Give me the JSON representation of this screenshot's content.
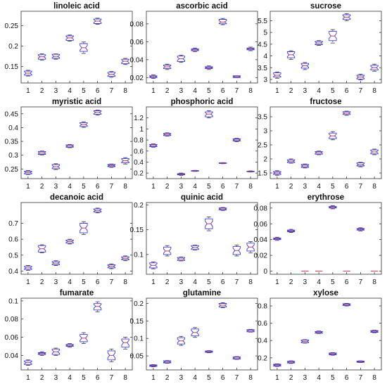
{
  "chart_data": [
    {
      "type": "box",
      "title": "linoleic acid",
      "categories": [
        "1",
        "2",
        "3",
        "4",
        "5",
        "6",
        "7",
        "8"
      ],
      "ylim": [
        0.11,
        0.285
      ],
      "yticks": [
        0.15,
        0.2,
        0.25
      ],
      "ytick_labels": [
        "0.15",
        "0.2",
        "0.25"
      ],
      "boxes": [
        [
          0.127,
          0.129,
          0.134,
          0.139,
          0.141
        ],
        [
          0.166,
          0.168,
          0.174,
          0.179,
          0.181
        ],
        [
          0.168,
          0.17,
          0.175,
          0.18,
          0.181
        ],
        [
          0.212,
          0.214,
          0.22,
          0.225,
          0.227
        ],
        [
          0.182,
          0.187,
          0.196,
          0.206,
          0.21
        ],
        [
          0.253,
          0.255,
          0.261,
          0.266,
          0.268
        ],
        [
          0.124,
          0.126,
          0.131,
          0.136,
          0.138
        ],
        [
          0.155,
          0.157,
          0.163,
          0.168,
          0.17
        ]
      ]
    },
    {
      "type": "box",
      "title": "ascorbic acid",
      "categories": [
        "1",
        "2",
        "3",
        "4",
        "5",
        "6",
        "7",
        "8"
      ],
      "ylim": [
        0.014,
        0.094
      ],
      "yticks": [
        0.02,
        0.04,
        0.06,
        0.08
      ],
      "ytick_labels": [
        "0.02",
        "0.04",
        "0.06",
        "0.08"
      ],
      "boxes": [
        [
          0.019,
          0.02,
          0.021,
          0.022,
          0.023
        ],
        [
          0.029,
          0.03,
          0.032,
          0.034,
          0.035
        ],
        [
          0.037,
          0.038,
          0.041,
          0.044,
          0.045
        ],
        [
          0.049,
          0.05,
          0.051,
          0.052,
          0.053
        ],
        [
          0.029,
          0.03,
          0.031,
          0.032,
          0.033
        ],
        [
          0.079,
          0.08,
          0.082,
          0.085,
          0.086
        ],
        [
          0.02,
          0.02,
          0.021,
          0.022,
          0.022
        ],
        [
          0.05,
          0.051,
          0.052,
          0.053,
          0.054
        ]
      ]
    },
    {
      "type": "box",
      "title": "sucrose",
      "categories": [
        "1",
        "2",
        "3",
        "4",
        "5",
        "6",
        "7",
        "8"
      ],
      "ylim": [
        2.85,
        5.9
      ],
      "yticks": [
        3,
        3.5,
        4,
        4.5,
        5,
        5.5
      ],
      "ytick_labels": [
        "3",
        "3.5",
        "4",
        "4.5",
        "5",
        "5.5"
      ],
      "boxes": [
        [
          3.05,
          3.1,
          3.18,
          3.28,
          3.32
        ],
        [
          3.85,
          3.92,
          4.05,
          4.18,
          4.22
        ],
        [
          3.42,
          3.48,
          3.58,
          3.68,
          3.72
        ],
        [
          4.45,
          4.48,
          4.55,
          4.62,
          4.65
        ],
        [
          4.55,
          4.65,
          4.85,
          5.05,
          5.12
        ],
        [
          5.5,
          5.55,
          5.65,
          5.75,
          5.8
        ],
        [
          2.98,
          3.02,
          3.1,
          3.18,
          3.22
        ],
        [
          3.35,
          3.4,
          3.5,
          3.6,
          3.65
        ]
      ]
    },
    {
      "type": "box",
      "title": "myristic acid",
      "categories": [
        "1",
        "2",
        "3",
        "4",
        "5",
        "6",
        "7",
        "8"
      ],
      "ylim": [
        0.215,
        0.475
      ],
      "yticks": [
        0.25,
        0.3,
        0.35,
        0.4,
        0.45
      ],
      "ytick_labels": [
        "0.25",
        "0.3",
        "0.35",
        "0.4",
        "0.45"
      ],
      "boxes": [
        [
          0.23,
          0.232,
          0.237,
          0.242,
          0.244
        ],
        [
          0.301,
          0.303,
          0.308,
          0.313,
          0.315
        ],
        [
          0.248,
          0.251,
          0.258,
          0.266,
          0.269
        ],
        [
          0.327,
          0.329,
          0.333,
          0.337,
          0.339
        ],
        [
          0.401,
          0.404,
          0.411,
          0.418,
          0.421
        ],
        [
          0.445,
          0.448,
          0.455,
          0.461,
          0.463
        ],
        [
          0.256,
          0.258,
          0.262,
          0.266,
          0.268
        ],
        [
          0.268,
          0.272,
          0.28,
          0.288,
          0.291
        ]
      ]
    },
    {
      "type": "box",
      "title": "phosphoric acid",
      "categories": [
        "1",
        "2",
        "3",
        "4",
        "5",
        "6",
        "7",
        "8"
      ],
      "ylim": [
        0.1,
        1.4
      ],
      "yticks": [
        0.2,
        0.4,
        0.6,
        0.8,
        1,
        1.2
      ],
      "ytick_labels": [
        "0.2",
        "0.4",
        "0.6",
        "0.8",
        "1",
        "1.2"
      ],
      "boxes": [
        [
          0.67,
          0.68,
          0.7,
          0.72,
          0.73
        ],
        [
          0.87,
          0.88,
          0.9,
          0.92,
          0.93
        ],
        [
          0.16,
          0.17,
          0.18,
          0.19,
          0.2
        ],
        [
          0.23,
          0.235,
          0.24,
          0.245,
          0.25
        ],
        [
          1.2,
          1.22,
          1.27,
          1.31,
          1.33
        ],
        [
          0.37,
          0.375,
          0.38,
          0.385,
          0.39
        ],
        [
          0.77,
          0.78,
          0.8,
          0.82,
          0.83
        ],
        [
          0.22,
          0.225,
          0.23,
          0.235,
          0.24
        ]
      ]
    },
    {
      "type": "box",
      "title": "fructose",
      "categories": [
        "1",
        "2",
        "3",
        "4",
        "5",
        "6",
        "7",
        "8"
      ],
      "ylim": [
        1.3,
        3.85
      ],
      "yticks": [
        1.5,
        2,
        2.5,
        3,
        3.5
      ],
      "ytick_labels": [
        "1.5",
        "2",
        "2.5",
        "3",
        "3.5"
      ],
      "boxes": [
        [
          1.42,
          1.45,
          1.5,
          1.55,
          1.58
        ],
        [
          1.85,
          1.87,
          1.92,
          1.97,
          2.0
        ],
        [
          1.68,
          1.7,
          1.75,
          1.8,
          1.82
        ],
        [
          2.15,
          2.17,
          2.22,
          2.26,
          2.28
        ],
        [
          2.68,
          2.72,
          2.82,
          2.92,
          2.97
        ],
        [
          3.55,
          3.58,
          3.63,
          3.68,
          3.7
        ],
        [
          1.72,
          1.75,
          1.8,
          1.86,
          1.88
        ],
        [
          2.15,
          2.18,
          2.25,
          2.32,
          2.35
        ]
      ]
    },
    {
      "type": "box",
      "title": "decanoic acid",
      "categories": [
        "1",
        "2",
        "3",
        "4",
        "5",
        "6",
        "7",
        "8"
      ],
      "ylim": [
        0.38,
        0.83
      ],
      "yticks": [
        0.4,
        0.5,
        0.6,
        0.7
      ],
      "ytick_labels": [
        "0.4",
        "0.5",
        "0.6",
        "0.7"
      ],
      "boxes": [
        [
          0.405,
          0.41,
          0.42,
          0.43,
          0.435
        ],
        [
          0.515,
          0.52,
          0.54,
          0.56,
          0.565
        ],
        [
          0.435,
          0.44,
          0.45,
          0.46,
          0.465
        ],
        [
          0.57,
          0.575,
          0.585,
          0.595,
          0.6
        ],
        [
          0.63,
          0.64,
          0.67,
          0.7,
          0.71
        ],
        [
          0.765,
          0.77,
          0.78,
          0.79,
          0.795
        ],
        [
          0.415,
          0.42,
          0.43,
          0.44,
          0.445
        ],
        [
          0.465,
          0.47,
          0.48,
          0.49,
          0.495
        ]
      ]
    },
    {
      "type": "box",
      "title": "quinic acid",
      "categories": [
        "1",
        "2",
        "3",
        "4",
        "5",
        "6",
        "7",
        "8"
      ],
      "ylim": [
        0.06,
        0.205
      ],
      "yticks": [
        0.1,
        0.15,
        0.2
      ],
      "ytick_labels": [
        "0.1",
        "0.15",
        "0.2"
      ],
      "boxes": [
        [
          0.071,
          0.073,
          0.078,
          0.083,
          0.085
        ],
        [
          0.097,
          0.1,
          0.107,
          0.115,
          0.118
        ],
        [
          0.087,
          0.088,
          0.091,
          0.094,
          0.095
        ],
        [
          0.109,
          0.11,
          0.114,
          0.118,
          0.119
        ],
        [
          0.148,
          0.152,
          0.162,
          0.172,
          0.176
        ],
        [
          0.189,
          0.19,
          0.192,
          0.194,
          0.195
        ],
        [
          0.097,
          0.1,
          0.108,
          0.116,
          0.119
        ],
        [
          0.103,
          0.107,
          0.115,
          0.123,
          0.126
        ]
      ]
    },
    {
      "type": "box",
      "title": "erythrose",
      "categories": [
        "1",
        "2",
        "3",
        "4",
        "5",
        "6",
        "7",
        "8"
      ],
      "ylim": [
        -0.004,
        0.087
      ],
      "yticks": [
        0,
        0.02,
        0.04,
        0.06,
        0.08
      ],
      "ytick_labels": [
        "0",
        "0.02",
        "0.04",
        "0.06",
        "0.08"
      ],
      "boxes": [
        [
          0.039,
          0.04,
          0.041,
          0.042,
          0.043
        ],
        [
          0.049,
          0.05,
          0.051,
          0.052,
          0.053
        ],
        [
          0,
          0,
          0,
          0,
          0
        ],
        [
          0,
          0,
          0,
          0,
          0
        ],
        [
          0.079,
          0.08,
          0.081,
          0.082,
          0.083
        ],
        [
          0,
          0,
          0,
          0,
          0
        ],
        [
          0.051,
          0.052,
          0.053,
          0.054,
          0.055
        ],
        [
          0,
          0,
          0,
          0,
          0
        ]
      ]
    },
    {
      "type": "box",
      "title": "fumarate",
      "categories": [
        "1",
        "2",
        "3",
        "4",
        "5",
        "6",
        "7",
        "8"
      ],
      "ylim": [
        0.024,
        0.103
      ],
      "yticks": [
        0.04,
        0.06,
        0.08,
        0.1
      ],
      "ytick_labels": [
        "0.04",
        "0.06",
        "0.08",
        "0.1"
      ],
      "boxes": [
        [
          0.029,
          0.03,
          0.032,
          0.034,
          0.035
        ],
        [
          0.04,
          0.041,
          0.042,
          0.043,
          0.044
        ],
        [
          0.04,
          0.041,
          0.044,
          0.047,
          0.048
        ],
        [
          0.049,
          0.05,
          0.051,
          0.052,
          0.053
        ],
        [
          0.053,
          0.055,
          0.059,
          0.063,
          0.065
        ],
        [
          0.088,
          0.09,
          0.094,
          0.097,
          0.099
        ],
        [
          0.033,
          0.035,
          0.04,
          0.045,
          0.047
        ],
        [
          0.047,
          0.049,
          0.054,
          0.058,
          0.06
        ]
      ]
    },
    {
      "type": "box",
      "title": "glutamine",
      "categories": [
        "1",
        "2",
        "3",
        "4",
        "5",
        "6",
        "7",
        "8"
      ],
      "ylim": [
        0.01,
        0.215
      ],
      "yticks": [
        0.05,
        0.1,
        0.15,
        0.2
      ],
      "ytick_labels": [
        "0.05",
        "0.1",
        "0.15",
        "0.2"
      ],
      "boxes": [
        [
          0.019,
          0.02,
          0.022,
          0.024,
          0.025
        ],
        [
          0.029,
          0.03,
          0.033,
          0.036,
          0.037
        ],
        [
          0.08,
          0.084,
          0.093,
          0.102,
          0.106
        ],
        [
          0.103,
          0.107,
          0.117,
          0.127,
          0.131
        ],
        [
          0.059,
          0.06,
          0.062,
          0.064,
          0.065
        ],
        [
          0.188,
          0.19,
          0.195,
          0.2,
          0.202
        ],
        [
          0.04,
          0.041,
          0.044,
          0.047,
          0.048
        ],
        [
          0.118,
          0.119,
          0.122,
          0.125,
          0.126
        ]
      ]
    },
    {
      "type": "box",
      "title": "xylose",
      "categories": [
        "1",
        "2",
        "3",
        "4",
        "5",
        "6",
        "7",
        "8"
      ],
      "ylim": [
        0.06,
        0.89
      ],
      "yticks": [
        0.2,
        0.4,
        0.6,
        0.8
      ],
      "ytick_labels": [
        "0.2",
        "0.4",
        "0.6",
        "0.8"
      ],
      "boxes": [
        [
          0.1,
          0.105,
          0.115,
          0.125,
          0.13
        ],
        [
          0.135,
          0.14,
          0.15,
          0.16,
          0.165
        ],
        [
          0.37,
          0.375,
          0.39,
          0.405,
          0.41
        ],
        [
          0.48,
          0.485,
          0.495,
          0.505,
          0.51
        ],
        [
          0.23,
          0.235,
          0.245,
          0.255,
          0.26
        ],
        [
          0.8,
          0.805,
          0.815,
          0.825,
          0.83
        ],
        [
          0.145,
          0.148,
          0.155,
          0.162,
          0.165
        ],
        [
          0.49,
          0.495,
          0.505,
          0.515,
          0.52
        ]
      ]
    }
  ],
  "colors": {
    "box": "#3b3bd6",
    "median": "#e8324a",
    "axis": "#333333",
    "text": "#111111"
  }
}
